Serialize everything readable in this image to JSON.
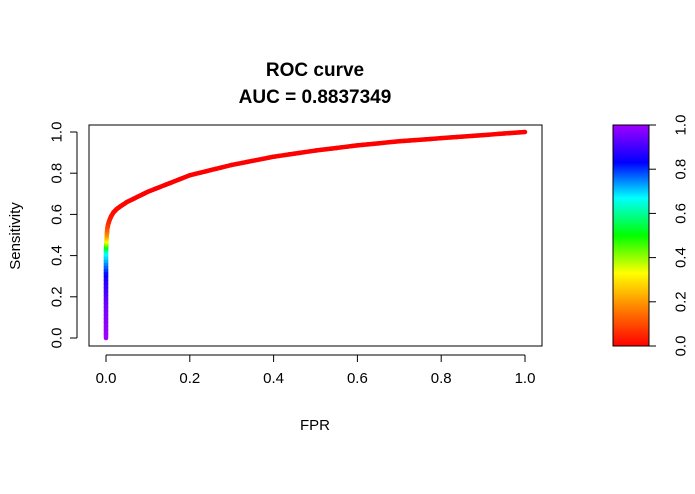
{
  "chart_data": {
    "type": "line",
    "title": "ROC curve",
    "subtitle": "AUC = 0.8837349",
    "xlabel": "FPR",
    "ylabel": "Sensitivity",
    "xlim": [
      0,
      1
    ],
    "ylim": [
      0,
      1
    ],
    "x_ticks": [
      "0.0",
      "0.2",
      "0.4",
      "0.6",
      "0.8",
      "1.0"
    ],
    "y_ticks": [
      "0.0",
      "0.2",
      "0.4",
      "0.6",
      "0.8",
      "1.0"
    ],
    "grid": false,
    "legend": "none",
    "series": [
      {
        "x": [
          0.0,
          0.0,
          0.0,
          0.0,
          0.001,
          0.002,
          0.003,
          0.005,
          0.008,
          0.012,
          0.018,
          0.025,
          0.035,
          0.05,
          0.075,
          0.1,
          0.15,
          0.2,
          0.3,
          0.4,
          0.5,
          0.6,
          0.7,
          0.8,
          0.9,
          1.0
        ],
        "y": [
          0.0,
          0.15,
          0.3,
          0.42,
          0.47,
          0.5,
          0.53,
          0.55,
          0.57,
          0.59,
          0.61,
          0.625,
          0.64,
          0.66,
          0.685,
          0.71,
          0.75,
          0.79,
          0.84,
          0.88,
          0.91,
          0.935,
          0.955,
          0.97,
          0.985,
          1.0
        ],
        "threshold": [
          1.0,
          0.96,
          0.86,
          0.65,
          0.35,
          0.2,
          0.12,
          0.08,
          0.05,
          0.03,
          0.02,
          0.01,
          0.01,
          0.005,
          0.0,
          0.0,
          0.0,
          0.0,
          0.0,
          0.0,
          0.0,
          0.0,
          0.0,
          0.0,
          0.0,
          0.0
        ]
      }
    ],
    "colorbar": {
      "range": [
        0,
        1
      ],
      "ticks": [
        "0.0",
        "0.2",
        "0.4",
        "0.6",
        "0.8",
        "1.0"
      ],
      "colors": [
        "#ff0000",
        "#ff8000",
        "#ffff00",
        "#00ff00",
        "#00ffff",
        "#0000ff",
        "#a000ff"
      ]
    }
  }
}
